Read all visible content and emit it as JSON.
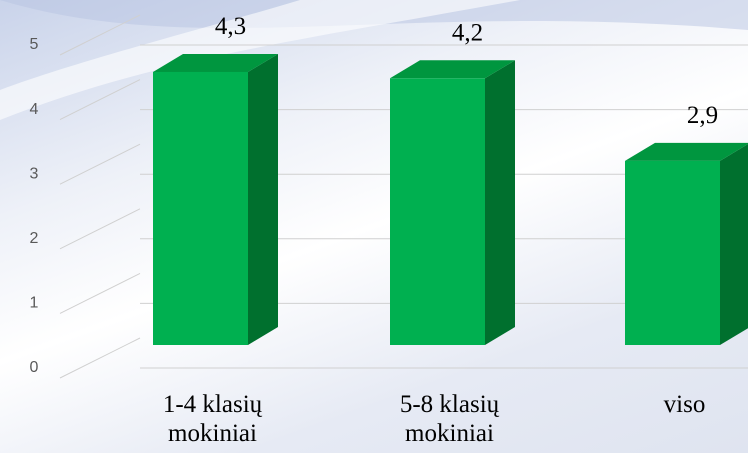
{
  "chart_data": {
    "type": "bar3d",
    "categories": [
      "1-4 klasių mokiniai",
      "5-8 klasių mokiniai",
      "viso"
    ],
    "values": [
      4.3,
      4.2,
      2.9
    ],
    "value_labels": [
      "4,3",
      "4,2",
      "2,9"
    ],
    "color": "#00b050",
    "ylim": [
      0,
      5
    ],
    "yticks": [
      0,
      1,
      2,
      3,
      4,
      5
    ],
    "grid": true
  }
}
